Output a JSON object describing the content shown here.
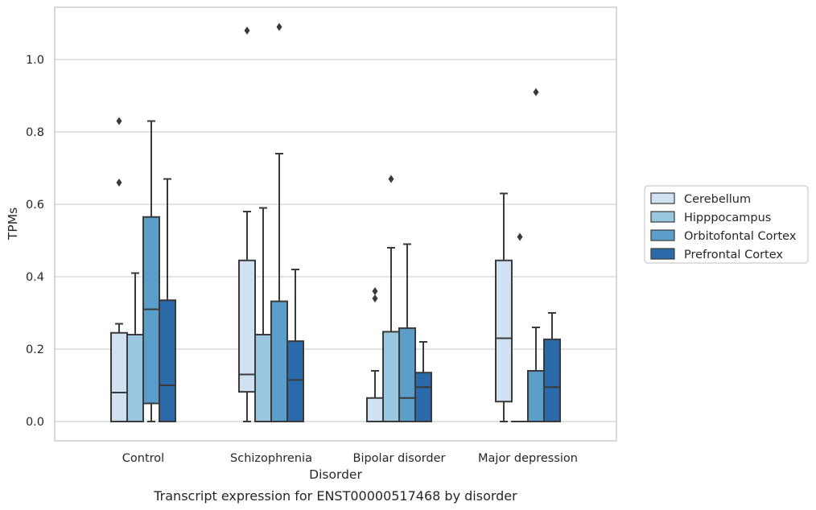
{
  "chart_data": {
    "type": "box",
    "xlabel": "Disorder",
    "ylabel": "TPMs",
    "caption": "Transcript expression for ENST00000517468 by disorder",
    "ylim": [
      -0.05,
      1.145
    ],
    "yticks": [
      "0.0",
      "0.2",
      "0.4",
      "0.6",
      "0.8",
      "1.0"
    ],
    "grid": "horizontal",
    "legend_position": "right",
    "categories": [
      "Control",
      "Schizophrenia",
      "Bipolar disorder",
      "Major depression"
    ],
    "series": [
      {
        "name": "Cerebellum",
        "color": "#d0e1f1",
        "boxes": [
          {
            "q1": 0.0,
            "median": 0.08,
            "q3": 0.245,
            "whisker_low": 0.0,
            "whisker_high": 0.27,
            "outliers": [
              0.66,
              0.83
            ]
          },
          {
            "q1": 0.082,
            "median": 0.13,
            "q3": 0.445,
            "whisker_low": 0.0,
            "whisker_high": 0.58,
            "outliers": [
              1.08
            ]
          },
          {
            "q1": 0.0,
            "median": 0.0,
            "q3": 0.065,
            "whisker_low": 0.0,
            "whisker_high": 0.14,
            "outliers": [
              0.34,
              0.36
            ]
          },
          {
            "q1": 0.055,
            "median": 0.23,
            "q3": 0.445,
            "whisker_low": 0.0,
            "whisker_high": 0.63,
            "outliers": []
          }
        ]
      },
      {
        "name": "Hipppocampus",
        "color": "#9ac7e0",
        "boxes": [
          {
            "q1": 0.0,
            "median": 0.0,
            "q3": 0.24,
            "whisker_low": 0.0,
            "whisker_high": 0.41,
            "outliers": []
          },
          {
            "q1": 0.0,
            "median": 0.0,
            "q3": 0.24,
            "whisker_low": 0.0,
            "whisker_high": 0.59,
            "outliers": []
          },
          {
            "q1": 0.0,
            "median": 0.0,
            "q3": 0.248,
            "whisker_low": 0.0,
            "whisker_high": 0.48,
            "outliers": [
              0.67
            ]
          },
          {
            "q1": 0.0,
            "median": 0.0,
            "q3": 0.0,
            "whisker_low": 0.0,
            "whisker_high": 0.0,
            "outliers": [
              0.51
            ]
          }
        ]
      },
      {
        "name": "Orbitofontal Cortex",
        "color": "#5a9ec9",
        "boxes": [
          {
            "q1": 0.05,
            "median": 0.31,
            "q3": 0.565,
            "whisker_low": 0.0,
            "whisker_high": 0.83,
            "outliers": []
          },
          {
            "q1": 0.0,
            "median": 0.0,
            "q3": 0.332,
            "whisker_low": 0.0,
            "whisker_high": 0.74,
            "outliers": [
              1.09
            ]
          },
          {
            "q1": 0.0,
            "median": 0.065,
            "q3": 0.258,
            "whisker_low": 0.0,
            "whisker_high": 0.49,
            "outliers": []
          },
          {
            "q1": 0.0,
            "median": 0.0,
            "q3": 0.14,
            "whisker_low": 0.0,
            "whisker_high": 0.26,
            "outliers": [
              0.91
            ]
          }
        ]
      },
      {
        "name": "Prefrontal Cortex",
        "color": "#2b6aa8",
        "boxes": [
          {
            "q1": 0.0,
            "median": 0.1,
            "q3": 0.335,
            "whisker_low": 0.0,
            "whisker_high": 0.67,
            "outliers": []
          },
          {
            "q1": 0.0,
            "median": 0.115,
            "q3": 0.222,
            "whisker_low": 0.0,
            "whisker_high": 0.42,
            "outliers": []
          },
          {
            "q1": 0.0,
            "median": 0.095,
            "q3": 0.135,
            "whisker_low": 0.0,
            "whisker_high": 0.22,
            "outliers": []
          },
          {
            "q1": 0.0,
            "median": 0.095,
            "q3": 0.227,
            "whisker_low": 0.0,
            "whisker_high": 0.3,
            "outliers": []
          }
        ]
      }
    ],
    "colors": {
      "frame": "#cccccc",
      "grid": "#d0d0d0",
      "box_edge": "#3a3a3a",
      "text": "#262626"
    }
  }
}
